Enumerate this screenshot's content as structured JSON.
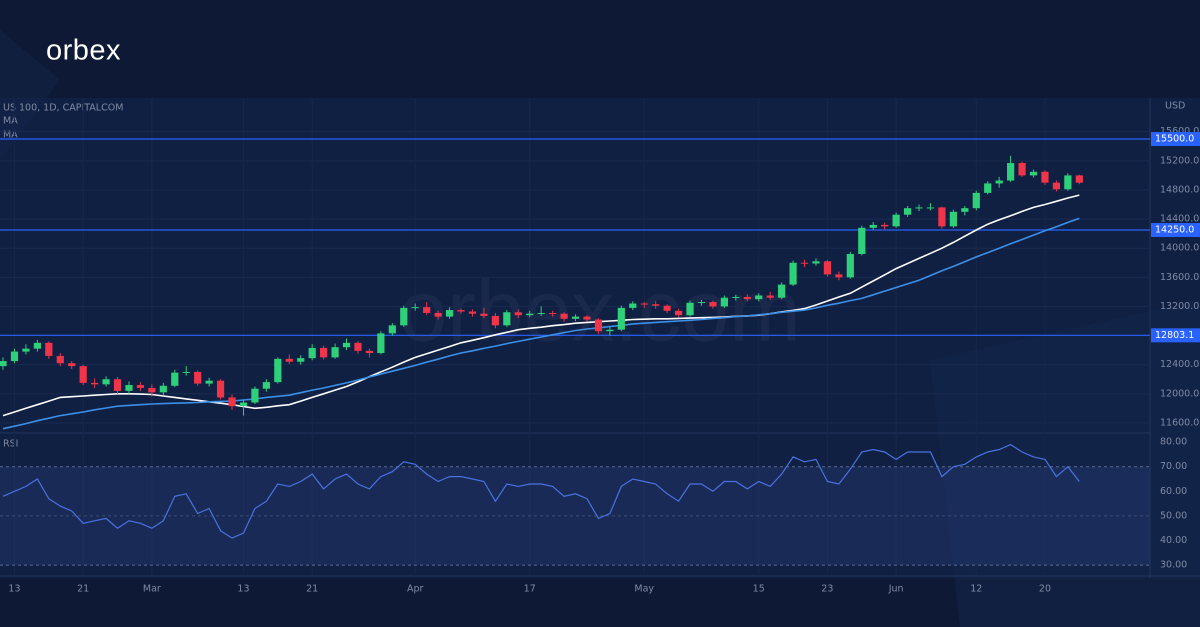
{
  "logo": "orbex",
  "watermark": "orbex.com",
  "chart_data": [
    {
      "type": "candlestick",
      "title": "US 100, 1D, CAPITALCOM",
      "y_axis_label": "USD",
      "categories": [
        null,
        "13",
        null,
        null,
        null,
        null,
        null,
        "21",
        null,
        null,
        null,
        null,
        null,
        "Mar",
        null,
        null,
        null,
        null,
        null,
        null,
        null,
        "13",
        null,
        null,
        null,
        null,
        null,
        "21",
        null,
        null,
        null,
        null,
        null,
        null,
        null,
        null,
        "Apr",
        null,
        null,
        null,
        null,
        null,
        null,
        null,
        null,
        null,
        "17",
        null,
        null,
        null,
        null,
        null,
        null,
        null,
        null,
        null,
        "May",
        null,
        null,
        null,
        null,
        null,
        null,
        null,
        null,
        null,
        "15",
        null,
        null,
        null,
        null,
        null,
        "23",
        null,
        null,
        null,
        null,
        null,
        "Jun",
        null,
        null,
        null,
        null,
        null,
        null,
        "12",
        null,
        null,
        null,
        null,
        null,
        "20",
        null,
        null,
        null
      ],
      "candles": [
        [
          12380,
          12500,
          12330,
          12450
        ],
        [
          12450,
          12620,
          12420,
          12580
        ],
        [
          12580,
          12680,
          12540,
          12620
        ],
        [
          12620,
          12740,
          12580,
          12700
        ],
        [
          12700,
          12720,
          12480,
          12520
        ],
        [
          12520,
          12560,
          12380,
          12420
        ],
        [
          12420,
          12450,
          12340,
          12380
        ],
        [
          12380,
          12400,
          12120,
          12150
        ],
        [
          12150,
          12210,
          12080,
          12130
        ],
        [
          12130,
          12240,
          12100,
          12200
        ],
        [
          12200,
          12230,
          12000,
          12040
        ],
        [
          12040,
          12170,
          12000,
          12120
        ],
        [
          12120,
          12160,
          12040,
          12080
        ],
        [
          12080,
          12130,
          11960,
          12020
        ],
        [
          12020,
          12150,
          11980,
          12110
        ],
        [
          12110,
          12330,
          12090,
          12290
        ],
        [
          12290,
          12380,
          12250,
          12300
        ],
        [
          12300,
          12320,
          12110,
          12140
        ],
        [
          12140,
          12220,
          12100,
          12180
        ],
        [
          12180,
          12200,
          11920,
          11950
        ],
        [
          11950,
          11990,
          11780,
          11830
        ],
        [
          11830,
          11920,
          11700,
          11880
        ],
        [
          11880,
          12100,
          11860,
          12070
        ],
        [
          12070,
          12200,
          12030,
          12160
        ],
        [
          12160,
          12500,
          12140,
          12480
        ],
        [
          12480,
          12540,
          12410,
          12440
        ],
        [
          12440,
          12530,
          12400,
          12490
        ],
        [
          12490,
          12680,
          12460,
          12630
        ],
        [
          12630,
          12660,
          12470,
          12500
        ],
        [
          12500,
          12690,
          12480,
          12640
        ],
        [
          12640,
          12760,
          12600,
          12700
        ],
        [
          12700,
          12720,
          12550,
          12590
        ],
        [
          12590,
          12620,
          12500,
          12560
        ],
        [
          12560,
          12860,
          12540,
          12830
        ],
        [
          12830,
          12970,
          12800,
          12940
        ],
        [
          12940,
          13210,
          12920,
          13180
        ],
        [
          13180,
          13240,
          13140,
          13190
        ],
        [
          13190,
          13260,
          13080,
          13110
        ],
        [
          13110,
          13140,
          13020,
          13060
        ],
        [
          13060,
          13190,
          13030,
          13150
        ],
        [
          13150,
          13170,
          13100,
          13130
        ],
        [
          13130,
          13160,
          13060,
          13100
        ],
        [
          13100,
          13180,
          13040,
          13070
        ],
        [
          13070,
          13110,
          12900,
          12940
        ],
        [
          12940,
          13150,
          12920,
          13120
        ],
        [
          13120,
          13160,
          13040,
          13080
        ],
        [
          13080,
          13140,
          13050,
          13100
        ],
        [
          13100,
          13200,
          13070,
          13110
        ],
        [
          13110,
          13140,
          13060,
          13100
        ],
        [
          13100,
          13120,
          12990,
          13030
        ],
        [
          13030,
          13090,
          13000,
          13060
        ],
        [
          13060,
          13080,
          12990,
          13020
        ],
        [
          13020,
          13040,
          12820,
          12860
        ],
        [
          12860,
          12920,
          12800,
          12880
        ],
        [
          12880,
          13210,
          12860,
          13180
        ],
        [
          13180,
          13270,
          13150,
          13240
        ],
        [
          13240,
          13260,
          13180,
          13230
        ],
        [
          13230,
          13270,
          13170,
          13210
        ],
        [
          13210,
          13230,
          13110,
          13140
        ],
        [
          13140,
          13170,
          13050,
          13080
        ],
        [
          13080,
          13280,
          13060,
          13250
        ],
        [
          13250,
          13290,
          13210,
          13260
        ],
        [
          13260,
          13280,
          13170,
          13200
        ],
        [
          13200,
          13350,
          13180,
          13320
        ],
        [
          13320,
          13360,
          13280,
          13330
        ],
        [
          13330,
          13370,
          13270,
          13300
        ],
        [
          13300,
          13380,
          13270,
          13350
        ],
        [
          13350,
          13400,
          13290,
          13320
        ],
        [
          13320,
          13530,
          13300,
          13500
        ],
        [
          13500,
          13830,
          13480,
          13800
        ],
        [
          13800,
          13840,
          13740,
          13790
        ],
        [
          13790,
          13860,
          13760,
          13820
        ],
        [
          13820,
          13840,
          13610,
          13640
        ],
        [
          13640,
          13680,
          13560,
          13600
        ],
        [
          13600,
          13950,
          13580,
          13920
        ],
        [
          13920,
          14310,
          13900,
          14280
        ],
        [
          14280,
          14360,
          14250,
          14320
        ],
        [
          14320,
          14350,
          14260,
          14300
        ],
        [
          14300,
          14490,
          14280,
          14460
        ],
        [
          14460,
          14580,
          14430,
          14550
        ],
        [
          14550,
          14600,
          14510,
          14560
        ],
        [
          14560,
          14620,
          14520,
          14560
        ],
        [
          14560,
          14570,
          14270,
          14300
        ],
        [
          14300,
          14530,
          14280,
          14500
        ],
        [
          14500,
          14580,
          14450,
          14550
        ],
        [
          14550,
          14790,
          14520,
          14760
        ],
        [
          14760,
          14920,
          14740,
          14890
        ],
        [
          14890,
          14980,
          14830,
          14930
        ],
        [
          14930,
          15270,
          14910,
          15170
        ],
        [
          15170,
          15190,
          14980,
          15000
        ],
        [
          15000,
          15080,
          14970,
          15050
        ],
        [
          15050,
          15070,
          14870,
          14900
        ],
        [
          14900,
          14930,
          14780,
          14810
        ],
        [
          14810,
          15030,
          14790,
          15000
        ],
        [
          15000,
          15010,
          14880,
          14900
        ]
      ],
      "up_color": "#2fd07a",
      "down_color": "#f0344a",
      "series": [
        {
          "name": "MA",
          "color": "#ffffff",
          "values": [
            11700,
            11750,
            11800,
            11850,
            11900,
            11950,
            11960,
            11970,
            11980,
            11990,
            12000,
            12000,
            11995,
            11990,
            11970,
            11950,
            11930,
            11910,
            11890,
            11870,
            11850,
            11825,
            11800,
            11815,
            11835,
            11850,
            11900,
            11950,
            12000,
            12050,
            12100,
            12165,
            12235,
            12300,
            12365,
            12435,
            12500,
            12550,
            12600,
            12650,
            12700,
            12735,
            12770,
            12810,
            12845,
            12880,
            12900,
            12915,
            12935,
            12950,
            12970,
            12980,
            12990,
            13000,
            13010,
            13020,
            13025,
            13030,
            13030,
            13035,
            13040,
            13045,
            13050,
            13055,
            13065,
            13070,
            13080,
            13100,
            13125,
            13145,
            13170,
            13220,
            13275,
            13330,
            13380,
            13465,
            13550,
            13635,
            13720,
            13790,
            13860,
            13930,
            14000,
            14080,
            14165,
            14250,
            14330,
            14390,
            14445,
            14505,
            14560,
            14600,
            14645,
            14690,
            14730
          ]
        },
        {
          "name": "MA",
          "color": "#3d8fe6",
          "values": [
            11520,
            11555,
            11590,
            11630,
            11665,
            11700,
            11725,
            11750,
            11780,
            11805,
            11830,
            11840,
            11850,
            11860,
            11865,
            11870,
            11875,
            11880,
            11890,
            11895,
            11900,
            11915,
            11930,
            11950,
            11965,
            11980,
            12015,
            12050,
            12080,
            12115,
            12150,
            12190,
            12230,
            12270,
            12310,
            12350,
            12390,
            12435,
            12475,
            12520,
            12560,
            12590,
            12625,
            12655,
            12690,
            12720,
            12750,
            12780,
            12810,
            12840,
            12870,
            12890,
            12905,
            12925,
            12940,
            12960,
            12970,
            12980,
            12990,
            13000,
            13010,
            13020,
            13035,
            13045,
            13060,
            13070,
            13085,
            13100,
            13120,
            13135,
            13150,
            13180,
            13215,
            13245,
            13280,
            13310,
            13360,
            13410,
            13460,
            13510,
            13560,
            13625,
            13690,
            13750,
            13815,
            13880,
            13940,
            14000,
            14060,
            14120,
            14180,
            14240,
            14295,
            14355,
            14410
          ]
        }
      ],
      "levels": [
        {
          "value": 15500,
          "label": "15500.0"
        },
        {
          "value": 14250,
          "label": "14250.0"
        },
        12803.1
      ],
      "level_color": "#2962ff",
      "ylim": [
        11475,
        16036
      ],
      "yticks": [
        {
          "value": 11600,
          "label": "11600.0"
        },
        {
          "value": 12000,
          "label": "12000.0"
        },
        {
          "value": 12400,
          "label": "12400.0"
        },
        {
          "value": 12800,
          "label": "12800.0"
        },
        {
          "value": 13200,
          "label": "13200.0"
        },
        {
          "value": 13600,
          "label": "13600.0"
        },
        {
          "value": 14000,
          "label": "14000.0"
        },
        {
          "value": 14400,
          "label": "14400.0"
        },
        {
          "value": 14800,
          "label": "14800.0"
        },
        {
          "value": 15200,
          "label": "15200.0"
        },
        {
          "value": 15600,
          "label": "15600.0"
        }
      ],
      "grid": true
    },
    {
      "type": "line",
      "title": "RSI",
      "color": "#4a72e0",
      "values": [
        58,
        60,
        62,
        65,
        57,
        54,
        52,
        47,
        48,
        49,
        45,
        48,
        47,
        45,
        48,
        58,
        59,
        51,
        53,
        44,
        41,
        43,
        53,
        56,
        63,
        62,
        64,
        67,
        61,
        65,
        67,
        63,
        61,
        66,
        68,
        72,
        71,
        67,
        64,
        66,
        66,
        65,
        64,
        56,
        63,
        62,
        63,
        63,
        62,
        58,
        59,
        57,
        49,
        51,
        62,
        65,
        64,
        63,
        59,
        56,
        63,
        63,
        60,
        64,
        64,
        61,
        64,
        62,
        67,
        74,
        72,
        73,
        64,
        63,
        69,
        76,
        77,
        76,
        73,
        76,
        76,
        76,
        66,
        70,
        71,
        74,
        76,
        77,
        79,
        76,
        74,
        73,
        66,
        70,
        64
      ],
      "band": [
        30,
        70
      ],
      "midline": 50,
      "ylim": [
        27.2,
        82.5
      ],
      "yticks": [
        {
          "value": 30,
          "label": "30.00"
        },
        {
          "value": 40,
          "label": "40.00"
        },
        {
          "value": 50,
          "label": "50.00"
        },
        {
          "value": 60,
          "label": "60.00"
        },
        {
          "value": 70,
          "label": "70.00"
        },
        {
          "value": 80,
          "label": "80.00"
        }
      ]
    }
  ]
}
